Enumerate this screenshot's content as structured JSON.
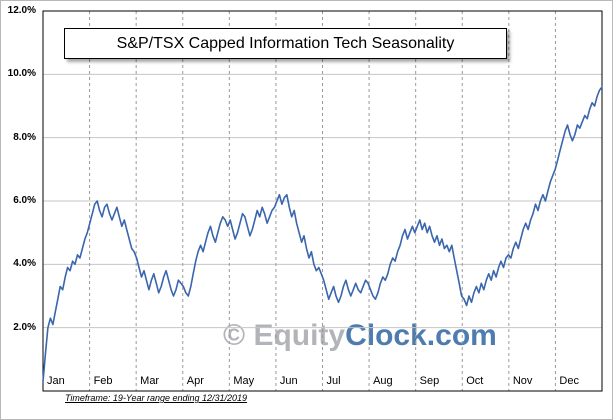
{
  "chart": {
    "title": "S&P/TSX Capped Information Tech Seasonality",
    "timeframe_note": "Timeframe: 19-Year range ending 12/31/2019"
  },
  "watermark": {
    "part1": "© Equity",
    "part2": "Clock.com",
    "gray_color": "#b2b4b9",
    "blue_color": "#4f7cae"
  },
  "chart_data": {
    "type": "line",
    "title": "S&P/TSX Capped Information Tech Seasonality",
    "xlabel": "",
    "ylabel": "",
    "ylim": [
      0,
      12
    ],
    "grid": true,
    "legend": false,
    "line_color": "#3a66ad",
    "y_ticks": [
      {
        "label": "12.0%",
        "value": 12
      },
      {
        "label": "10.0%",
        "value": 10
      },
      {
        "label": "8.0%",
        "value": 8
      },
      {
        "label": "6.0%",
        "value": 6
      },
      {
        "label": "4.0%",
        "value": 4
      },
      {
        "label": "2.0%",
        "value": 2
      }
    ],
    "categories": [
      "Jan",
      "Feb",
      "Mar",
      "Apr",
      "May",
      "Jun",
      "Jul",
      "Aug",
      "Sep",
      "Oct",
      "Nov",
      "Dec"
    ],
    "points_per_month": 19,
    "x_description": "Trading days across the year (Jan 1 to Dec 31), cumulative average gain %, estimated from plot",
    "values": [
      0.3,
      1.2,
      2.0,
      2.3,
      2.1,
      2.5,
      2.9,
      3.3,
      3.2,
      3.6,
      3.9,
      3.8,
      4.1,
      4.0,
      4.3,
      4.2,
      4.5,
      4.8,
      5.0,
      5.3,
      5.6,
      5.9,
      6.0,
      5.7,
      5.5,
      5.8,
      5.9,
      5.6,
      5.4,
      5.6,
      5.8,
      5.5,
      5.2,
      5.4,
      5.1,
      4.8,
      4.5,
      4.4,
      4.2,
      3.9,
      3.6,
      3.8,
      3.5,
      3.2,
      3.5,
      3.7,
      3.4,
      3.1,
      3.3,
      3.6,
      3.8,
      3.5,
      3.2,
      3.0,
      3.2,
      3.5,
      3.4,
      3.3,
      3.1,
      3.0,
      3.3,
      3.7,
      4.1,
      4.4,
      4.6,
      4.4,
      4.7,
      5.0,
      5.2,
      4.9,
      4.7,
      5.0,
      5.3,
      5.5,
      5.4,
      5.2,
      5.4,
      5.1,
      4.8,
      5.0,
      5.3,
      5.6,
      5.5,
      5.2,
      4.9,
      5.1,
      5.4,
      5.7,
      5.5,
      5.8,
      5.6,
      5.3,
      5.5,
      5.7,
      5.8,
      6.0,
      6.2,
      5.9,
      6.1,
      6.2,
      5.8,
      5.5,
      5.7,
      5.3,
      5.0,
      4.7,
      4.9,
      4.5,
      4.2,
      4.4,
      4.0,
      3.8,
      3.9,
      3.7,
      3.5,
      3.2,
      2.9,
      3.1,
      3.3,
      3.0,
      2.8,
      3.0,
      3.3,
      3.5,
      3.2,
      3.0,
      3.2,
      3.4,
      3.2,
      3.1,
      3.3,
      3.5,
      3.4,
      3.2,
      3.0,
      2.9,
      3.1,
      3.4,
      3.6,
      3.5,
      3.7,
      4.0,
      4.2,
      4.1,
      4.4,
      4.6,
      4.9,
      5.1,
      4.8,
      5.0,
      5.2,
      5.0,
      5.2,
      5.4,
      5.1,
      5.3,
      5.0,
      5.2,
      4.9,
      4.7,
      4.9,
      4.6,
      4.8,
      4.5,
      4.6,
      4.4,
      4.6,
      4.2,
      3.8,
      3.4,
      3.0,
      2.9,
      2.7,
      3.0,
      2.8,
      3.1,
      3.3,
      3.1,
      3.4,
      3.2,
      3.5,
      3.7,
      3.5,
      3.8,
      3.6,
      3.9,
      4.1,
      3.9,
      4.2,
      4.3,
      4.2,
      4.5,
      4.7,
      4.5,
      4.8,
      5.1,
      5.3,
      5.1,
      5.4,
      5.6,
      5.9,
      5.7,
      6.0,
      6.2,
      6.0,
      6.3,
      6.6,
      6.8,
      7.0,
      7.3,
      7.6,
      7.9,
      8.2,
      8.4,
      8.1,
      7.9,
      8.1,
      8.4,
      8.3,
      8.5,
      8.7,
      8.6,
      8.9,
      9.1,
      9.0,
      9.3,
      9.5,
      9.6
    ]
  }
}
